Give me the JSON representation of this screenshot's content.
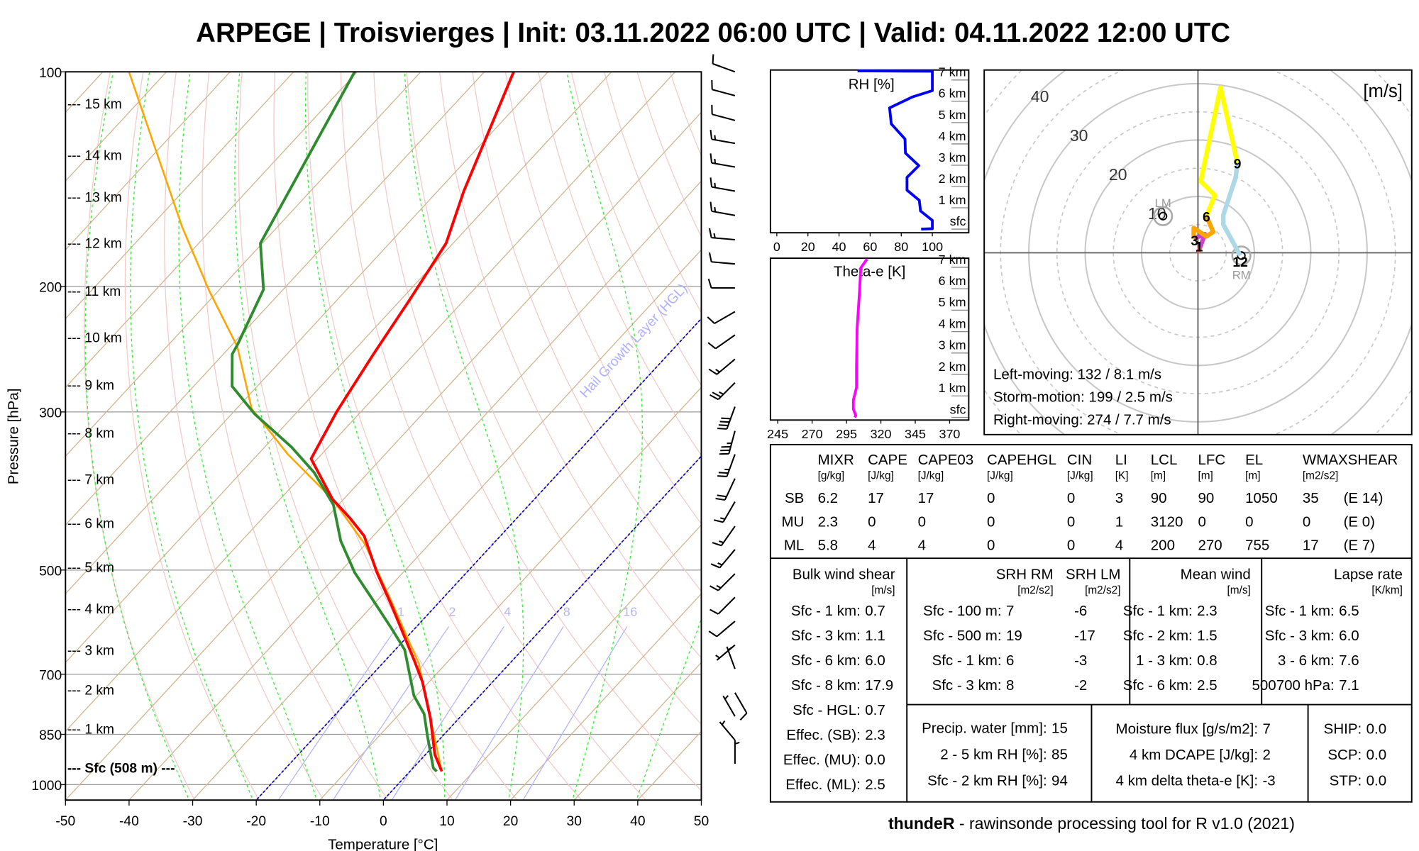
{
  "title": "ARPEGE | Troisvierges | Init: 03.11.2022 06:00 UTC | Valid: 04.11.2022 12:00 UTC",
  "footer": {
    "brand": "thundeR",
    "text": " - rawinsonde processing tool for R v1.0 (2021)"
  },
  "colors": {
    "temperature": "#ff0000",
    "dewpoint": "#2e8b2e",
    "parcel": "#ffa500",
    "rh": "#0000ff",
    "thetae": "#ff00ff",
    "isotherm": "#d2b48c",
    "dry_adiabat": "#f2caca",
    "moist_adiabat": "#33ee33",
    "mixing_ratio": "#b4b4ff",
    "hgl": "#0000cc"
  },
  "chart_data": [
    {
      "id": "skewt",
      "type": "line",
      "title": "Skew-T log-p",
      "xlabel": "Temperature [°C]",
      "ylabel": "Pressure [hPa]",
      "xlim": [
        -50,
        50
      ],
      "ylim": [
        1050,
        100
      ],
      "xticks": [
        "-50",
        "-40",
        "-30",
        "-20",
        "-10",
        "0",
        "10",
        "20",
        "30",
        "40",
        "50"
      ],
      "yticks": [
        "100",
        "200",
        "300",
        "500",
        "700",
        "850",
        "1000"
      ],
      "grid": true,
      "heights": [
        {
          "label": "--- 15 km",
          "p": 111
        },
        {
          "label": "--- 14 km",
          "p": 131
        },
        {
          "label": "--- 13 km",
          "p": 150
        },
        {
          "label": "--- 12 km",
          "p": 174
        },
        {
          "label": "--- 11 km",
          "p": 203
        },
        {
          "label": "--- 10 km",
          "p": 236
        },
        {
          "label": "--- 9 km",
          "p": 275
        },
        {
          "label": "--- 8 km",
          "p": 321
        },
        {
          "label": "--- 7 km",
          "p": 373
        },
        {
          "label": "--- 6 km",
          "p": 430
        },
        {
          "label": "--- 5 km",
          "p": 496
        },
        {
          "label": "--- 4 km",
          "p": 567
        },
        {
          "label": "--- 3 km",
          "p": 648
        },
        {
          "label": "--- 2 km",
          "p": 737
        },
        {
          "label": "--- 1 km",
          "p": 836
        },
        {
          "label": "--- Sfc (508 m) ---",
          "p": 948
        }
      ],
      "series": [
        {
          "name": "temperature",
          "points": [
            [
              958,
              5.0
            ],
            [
              908,
              1.5
            ],
            [
              807,
              -4.5
            ],
            [
              718,
              -11.0
            ],
            [
              667,
              -15.7
            ],
            [
              559,
              -27.2
            ],
            [
              504,
              -34.1
            ],
            [
              448,
              -41.4
            ],
            [
              423,
              -46.2
            ],
            [
              398,
              -51.7
            ],
            [
              349,
              -61.0
            ],
            [
              300,
              -63.8
            ],
            [
              249,
              -66.4
            ],
            [
              209,
              -68.6
            ],
            [
              174,
              -71.1
            ],
            [
              147,
              -75.9
            ],
            [
              100,
              -85.4
            ]
          ]
        },
        {
          "name": "dewpoint",
          "points": [
            [
              958,
              4.2
            ],
            [
              948,
              3.2
            ],
            [
              856,
              -2.3
            ],
            [
              796,
              -6.1
            ],
            [
              750,
              -10.4
            ],
            [
              647,
              -18.5
            ],
            [
              602,
              -23.9
            ],
            [
              551,
              -30.7
            ],
            [
              504,
              -37.6
            ],
            [
              455,
              -44.4
            ],
            [
              405,
              -50.8
            ],
            [
              365,
              -58.5
            ],
            [
              336,
              -65.8
            ],
            [
              302,
              -76.4
            ],
            [
              276,
              -84.0
            ],
            [
              249,
              -88.6
            ],
            [
              241,
              -89.2
            ],
            [
              202,
              -93.1
            ],
            [
              174,
              -100.3
            ],
            [
              100,
              -110.4
            ]
          ]
        },
        {
          "name": "parcel",
          "points": [
            [
              958,
              5.0
            ],
            [
              676,
              -14.3
            ],
            [
              551,
              -27.9
            ],
            [
              460,
              -40.1
            ],
            [
              398,
              -51.7
            ],
            [
              344,
              -65.3
            ],
            [
              297,
              -77.6
            ],
            [
              243,
              -88.9
            ],
            [
              203,
              -101.4
            ],
            [
              165,
              -115.0
            ],
            [
              100,
              -145.9
            ]
          ]
        }
      ],
      "mixing_ratio_labels": [
        "1",
        "2",
        "4",
        "8",
        "16"
      ],
      "hgl_label": "Hail Growth Layer (HGL)",
      "wind_barbs": [
        [
          100,
          290,
          10
        ],
        [
          108,
          285,
          10
        ],
        [
          117,
          285,
          10
        ],
        [
          126,
          280,
          15
        ],
        [
          136,
          280,
          15
        ],
        [
          147,
          280,
          15
        ],
        [
          159,
          280,
          15
        ],
        [
          172,
          275,
          15
        ],
        [
          186,
          275,
          10
        ],
        [
          201,
          270,
          10
        ],
        [
          217,
          240,
          10
        ],
        [
          234,
          235,
          10
        ],
        [
          253,
          230,
          15
        ],
        [
          273,
          225,
          25
        ],
        [
          295,
          200,
          40
        ],
        [
          319,
          195,
          35
        ],
        [
          344,
          200,
          25
        ],
        [
          372,
          205,
          20
        ],
        [
          401,
          210,
          15
        ],
        [
          434,
          215,
          15
        ],
        [
          468,
          220,
          15
        ],
        [
          506,
          225,
          15
        ],
        [
          546,
          225,
          10
        ],
        [
          590,
          230,
          10
        ],
        [
          637,
          230,
          5
        ],
        [
          688,
          340,
          5
        ],
        [
          743,
          150,
          10
        ],
        [
          802,
          330,
          5
        ],
        [
          866,
          320,
          5
        ],
        [
          935,
          0,
          5
        ]
      ]
    },
    {
      "id": "rh",
      "type": "line",
      "title": "RH [%]",
      "xlim": [
        0,
        100
      ],
      "xticks": [
        "0",
        "20",
        "40",
        "60",
        "80",
        "100"
      ],
      "ylabels": [
        "sfc",
        "1 km",
        "2 km",
        "3 km",
        "4 km",
        "5 km",
        "6 km",
        "7 km"
      ],
      "points": [
        [
          92.8,
          0
        ],
        [
          100,
          0.02
        ],
        [
          100,
          0.41
        ],
        [
          92.4,
          0.85
        ],
        [
          91.6,
          1.35
        ],
        [
          83.7,
          1.83
        ],
        [
          83.7,
          2.43
        ],
        [
          91.3,
          2.98
        ],
        [
          82.7,
          3.57
        ],
        [
          82.4,
          4.23
        ],
        [
          73.6,
          4.94
        ],
        [
          72.5,
          5.69
        ],
        [
          87,
          6.2
        ],
        [
          100,
          6.5
        ],
        [
          100,
          7.41
        ],
        [
          51.9,
          7.76
        ]
      ]
    },
    {
      "id": "thetae",
      "type": "line",
      "title": "Theta-e [K]",
      "xlim": [
        245,
        370
      ],
      "xticks": [
        "245",
        "270",
        "295",
        "320",
        "345",
        "370"
      ],
      "ylabels": [
        "sfc",
        "1 km",
        "2 km",
        "3 km",
        "4 km",
        "5 km",
        "6 km",
        "7 km"
      ],
      "points": [
        [
          300.9,
          0
        ],
        [
          301.8,
          0.08
        ],
        [
          300,
          0.38
        ],
        [
          300,
          0.8
        ],
        [
          302.3,
          1.4
        ],
        [
          302.3,
          2.35
        ],
        [
          302.7,
          4.12
        ],
        [
          304.5,
          5.9
        ],
        [
          305.4,
          6.97
        ],
        [
          309.9,
          7.74
        ]
      ]
    },
    {
      "id": "hodograph",
      "type": "line",
      "unit_label": "[m/s]",
      "ring_labels": [
        "10",
        "20",
        "30",
        "40"
      ],
      "segments": [
        {
          "name": "0-1 km",
          "color": "#e07070",
          "points": [
            [
              0,
              0
            ],
            [
              0.4,
              1.0
            ]
          ]
        },
        {
          "name": "1-3 km",
          "color": "#cc44cc",
          "points": [
            [
              0.4,
              1.0
            ],
            [
              1.2,
              3.3
            ],
            [
              -0.75,
              2.5
            ]
          ]
        },
        {
          "name": "3-6 km",
          "color": "#ffa500",
          "points": [
            [
              -0.75,
              2.5
            ],
            [
              -0.75,
              4.4
            ],
            [
              1.5,
              2.9
            ],
            [
              2.7,
              3.7
            ],
            [
              1.5,
              6.5
            ]
          ]
        },
        {
          "name": "6-9 km",
          "color": "#ffff00",
          "points": [
            [
              1.5,
              6.5
            ],
            [
              3.0,
              10.2
            ],
            [
              0.5,
              12.7
            ],
            [
              4.0,
              29.3
            ],
            [
              7.0,
              15.9
            ]
          ]
        },
        {
          "name": "9-12 km",
          "color": "#add8e6",
          "points": [
            [
              7.0,
              15.9
            ],
            [
              6.7,
              13.4
            ],
            [
              4.5,
              6.7
            ],
            [
              4.5,
              5.0
            ],
            [
              7.5,
              -0.5
            ]
          ]
        }
      ],
      "height_marks": [
        {
          "label": "1",
          "u": 0.2,
          "v": 1.2
        },
        {
          "label": "3",
          "u": -0.6,
          "v": 2.3
        },
        {
          "label": "6",
          "u": 1.5,
          "v": 6.5
        },
        {
          "label": "9",
          "u": 7.0,
          "v": 15.9
        },
        {
          "label": "12",
          "u": 7.5,
          "v": -1.5
        }
      ],
      "storm_markers": [
        {
          "label": "LM",
          "u": -6.2,
          "v": 6.5
        },
        {
          "label": "RM",
          "u": 7.7,
          "v": -0.5
        }
      ],
      "storm_motion_text": [
        "Left-moving: 132 / 8.1 m/s",
        "Storm-motion: 199 / 2.5 m/s",
        "Right-moving: 274 / 7.7 m/s"
      ]
    }
  ],
  "params_table": {
    "headers": [
      {
        "name": "MIXR",
        "unit": "[g/kg]"
      },
      {
        "name": "CAPE",
        "unit": "[J/kg]"
      },
      {
        "name": "CAPE03",
        "unit": "[J/kg]"
      },
      {
        "name": "CAPEHGL",
        "unit": "[J/kg]"
      },
      {
        "name": "CIN",
        "unit": "[J/kg]"
      },
      {
        "name": "LI",
        "unit": "[K]"
      },
      {
        "name": "LCL",
        "unit": "[m]"
      },
      {
        "name": "LFC",
        "unit": "[m]"
      },
      {
        "name": "EL",
        "unit": "[m]"
      },
      {
        "name": "WMAXSHEAR",
        "unit": "[m2/s2]"
      }
    ],
    "rows": [
      {
        "label": "SB",
        "values": [
          "6.2",
          "17",
          "17",
          "0",
          "0",
          "3",
          "90",
          "90",
          "1050",
          "35",
          "(E 14)"
        ]
      },
      {
        "label": "MU",
        "values": [
          "2.3",
          "0",
          "0",
          "0",
          "0",
          "1",
          "3120",
          "0",
          "0",
          "0",
          "(E 0)"
        ]
      },
      {
        "label": "ML",
        "values": [
          "5.8",
          "4",
          "4",
          "0",
          "0",
          "4",
          "200",
          "270",
          "755",
          "17",
          "(E 7)"
        ]
      }
    ]
  },
  "bulk_shear": {
    "title": "Bulk wind shear",
    "unit": "[m/s]",
    "rows": [
      [
        "Sfc - 1 km:",
        "0.7"
      ],
      [
        "Sfc - 3 km:",
        "1.1"
      ],
      [
        "Sfc - 6 km:",
        "6.0"
      ],
      [
        "Sfc - 8 km:",
        "17.9"
      ],
      [
        "Sfc - HGL:",
        "0.7"
      ],
      [
        "Effec. (SB):",
        "2.3"
      ],
      [
        "Effec. (MU):",
        "0.0"
      ],
      [
        "Effec. (ML):",
        "2.5"
      ]
    ]
  },
  "srh": {
    "title_rm": "SRH RM",
    "title_lm": "SRH LM",
    "unit_rm": "[m2/s2]",
    "unit_lm": "[m2/s2]",
    "rows": [
      [
        "Sfc - 100 m:",
        "7",
        "-6"
      ],
      [
        "Sfc - 500 m:",
        "19",
        "-17"
      ],
      [
        "Sfc - 1 km:",
        "6",
        "-3"
      ],
      [
        "Sfc - 3 km:",
        "8",
        "-2"
      ]
    ]
  },
  "mean_wind": {
    "title": "Mean wind",
    "unit": "[m/s]",
    "rows": [
      [
        "Sfc - 1 km:",
        "2.3"
      ],
      [
        "Sfc - 2 km:",
        "1.5"
      ],
      [
        "1 - 3 km:",
        "0.8"
      ],
      [
        "Sfc - 6 km:",
        "2.5"
      ]
    ]
  },
  "lapse_rate": {
    "title": "Lapse rate",
    "unit": "[K/km]",
    "rows": [
      [
        "Sfc - 1 km:",
        "6.5"
      ],
      [
        "Sfc - 3 km:",
        "6.0"
      ],
      [
        "3 - 6 km:",
        "7.6"
      ],
      [
        "500700 hPa:",
        "7.1"
      ]
    ]
  },
  "moisture": {
    "rows": [
      [
        "Precip. water [mm]:",
        "15"
      ],
      [
        "2 - 5 km RH [%]:",
        "85"
      ],
      [
        "Sfc - 2 km RH [%]:",
        "94"
      ]
    ]
  },
  "flux": {
    "rows": [
      [
        "Moisture flux [g/s/m2]:",
        "7"
      ],
      [
        "4 km DCAPE [J/kg]:",
        "2"
      ],
      [
        "4 km delta theta-e [K]:",
        "-3"
      ]
    ]
  },
  "composite": {
    "rows": [
      [
        "SHIP:",
        "0.0"
      ],
      [
        "SCP:",
        "0.0"
      ],
      [
        "STP:",
        "0.0"
      ]
    ]
  }
}
